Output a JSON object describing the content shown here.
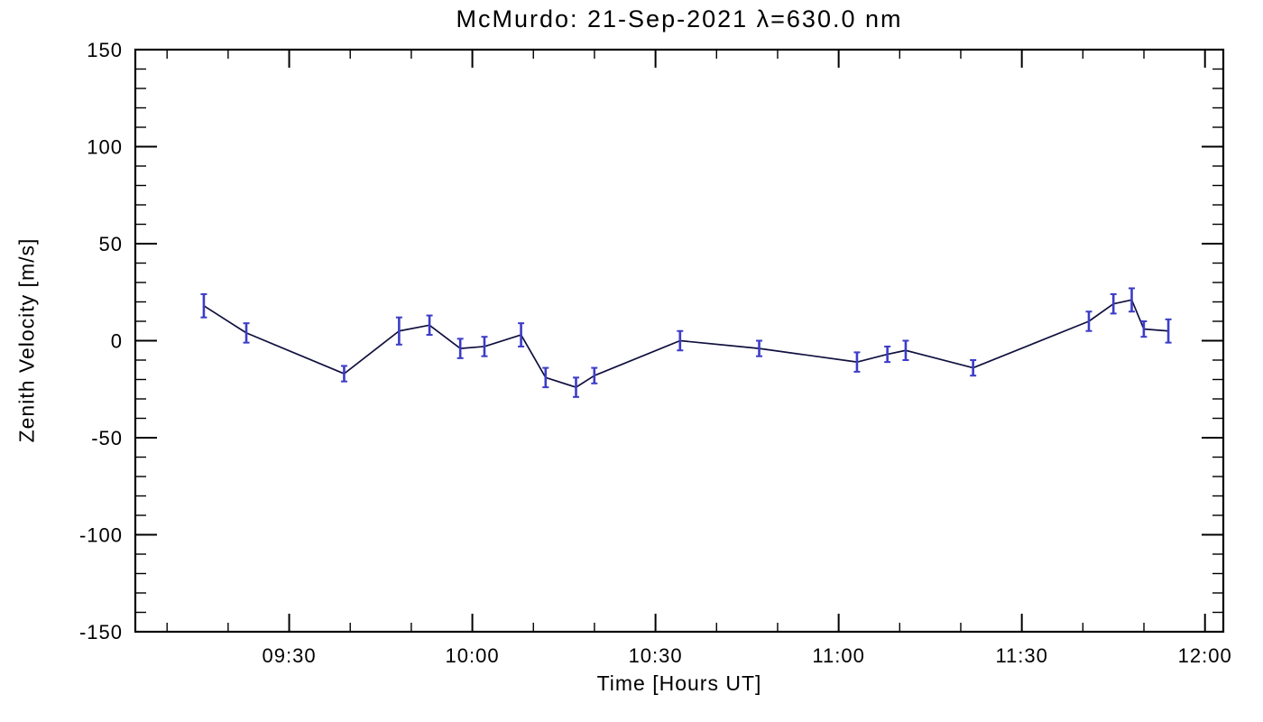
{
  "chart_data": {
    "type": "line",
    "title": "McMurdo: 21-Sep-2021 λ=630.0 nm",
    "xlabel": "Time [Hours UT]",
    "ylabel": "Zenith Velocity [m/s]",
    "xlim": [
      9.08,
      12.05
    ],
    "ylim": [
      -150,
      150
    ],
    "y_major_ticks": [
      -150,
      -100,
      -50,
      0,
      50,
      100,
      150
    ],
    "y_minor_step": 10,
    "x_major_ticks": [
      {
        "v": 9.5,
        "label": "09:30"
      },
      {
        "v": 10.0,
        "label": "10:00"
      },
      {
        "v": 10.5,
        "label": "10:30"
      },
      {
        "v": 11.0,
        "label": "11:00"
      },
      {
        "v": 11.5,
        "label": "11:30"
      },
      {
        "v": 12.0,
        "label": "12:00"
      }
    ],
    "x_minor_step_minutes": 10,
    "grid": false,
    "legend": "none",
    "line_color": "#10103f",
    "error_color": "#3c3cc8",
    "series": [
      {
        "name": "zenith-velocity",
        "points": [
          {
            "time": "09:16",
            "t": 9.267,
            "v": 18,
            "err": 6
          },
          {
            "time": "09:23",
            "t": 9.383,
            "v": 4,
            "err": 5
          },
          {
            "time": "09:39",
            "t": 9.65,
            "v": -17,
            "err": 4
          },
          {
            "time": "09:48",
            "t": 9.8,
            "v": 5,
            "err": 7
          },
          {
            "time": "09:53",
            "t": 9.883,
            "v": 8,
            "err": 5
          },
          {
            "time": "09:58",
            "t": 9.967,
            "v": -4,
            "err": 5
          },
          {
            "time": "10:02",
            "t": 10.033,
            "v": -3,
            "err": 5
          },
          {
            "time": "10:08",
            "t": 10.133,
            "v": 3,
            "err": 6
          },
          {
            "time": "10:12",
            "t": 10.2,
            "v": -19,
            "err": 5
          },
          {
            "time": "10:17",
            "t": 10.283,
            "v": -24,
            "err": 5
          },
          {
            "time": "10:20",
            "t": 10.333,
            "v": -18,
            "err": 4
          },
          {
            "time": "10:34",
            "t": 10.567,
            "v": 0,
            "err": 5
          },
          {
            "time": "10:47",
            "t": 10.783,
            "v": -4,
            "err": 4
          },
          {
            "time": "11:03",
            "t": 11.05,
            "v": -11,
            "err": 5
          },
          {
            "time": "11:08",
            "t": 11.133,
            "v": -7,
            "err": 4
          },
          {
            "time": "11:11",
            "t": 11.183,
            "v": -5,
            "err": 5
          },
          {
            "time": "11:22",
            "t": 11.367,
            "v": -14,
            "err": 4
          },
          {
            "time": "11:41",
            "t": 11.683,
            "v": 10,
            "err": 5
          },
          {
            "time": "11:45",
            "t": 11.75,
            "v": 19,
            "err": 5
          },
          {
            "time": "11:48",
            "t": 11.8,
            "v": 21,
            "err": 6
          },
          {
            "time": "11:50",
            "t": 11.833,
            "v": 6,
            "err": 4
          },
          {
            "time": "11:54",
            "t": 11.9,
            "v": 5,
            "err": 6
          }
        ]
      }
    ]
  }
}
